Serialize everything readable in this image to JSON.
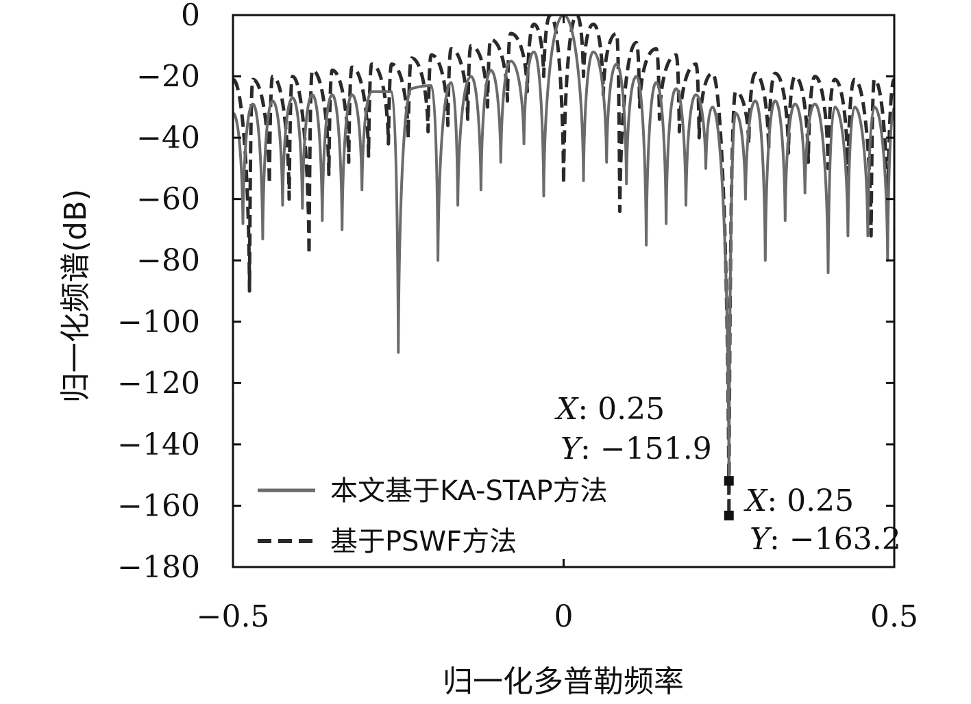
{
  "chart_data": {
    "type": "line",
    "xlabel": "归一化多普勒频率",
    "ylabel": "归一化频谱(dB)",
    "xlim": [
      -0.5,
      0.5
    ],
    "ylim": [
      -180,
      0
    ],
    "xticks": [
      -0.5,
      0,
      0.5
    ],
    "xtick_labels": [
      "−0.5",
      "0",
      "0.5"
    ],
    "yticks": [
      0,
      -20,
      -40,
      -60,
      -80,
      -100,
      -120,
      -140,
      -160,
      -180
    ],
    "ytick_labels": [
      "0",
      "−20",
      "−40",
      "−60",
      "−80",
      "−100",
      "−120",
      "−140",
      "−160",
      "−180"
    ],
    "grid": false,
    "legend_position": "bottom-left",
    "series": [
      {
        "name": "本文基于KA-STAP方法",
        "color": "#6b6b6b",
        "dash": "solid",
        "peaks": [
          [
            -0.5,
            -32
          ],
          [
            -0.47,
            -29
          ],
          [
            -0.44,
            -28
          ],
          [
            -0.41,
            -27
          ],
          [
            -0.38,
            -26
          ],
          [
            -0.35,
            -26
          ],
          [
            -0.32,
            -26
          ],
          [
            -0.29,
            -25
          ],
          [
            -0.26,
            -25
          ],
          [
            -0.23,
            -24
          ],
          [
            -0.2,
            -23
          ],
          [
            -0.17,
            -22
          ],
          [
            -0.14,
            -20
          ],
          [
            -0.11,
            -18
          ],
          [
            -0.08,
            -15
          ],
          [
            -0.045,
            -12
          ],
          [
            0,
            0
          ],
          [
            0.045,
            -12
          ],
          [
            0.08,
            -16
          ],
          [
            0.11,
            -20
          ],
          [
            0.14,
            -22
          ],
          [
            0.17,
            -24
          ],
          [
            0.2,
            -26
          ],
          [
            0.225,
            -30
          ],
          [
            0.26,
            -32
          ],
          [
            0.29,
            -28
          ],
          [
            0.32,
            -28
          ],
          [
            0.35,
            -29
          ],
          [
            0.38,
            -29
          ],
          [
            0.41,
            -30
          ],
          [
            0.44,
            -30
          ],
          [
            0.47,
            -30
          ],
          [
            0.5,
            -30
          ]
        ],
        "nulls": [
          [
            -0.485,
            -68
          ],
          [
            -0.455,
            -73
          ],
          [
            -0.425,
            -62
          ],
          [
            -0.395,
            -63
          ],
          [
            -0.365,
            -67
          ],
          [
            -0.335,
            -70
          ],
          [
            -0.305,
            -57
          ],
          [
            -0.25,
            -110
          ],
          [
            -0.19,
            -80
          ],
          [
            -0.16,
            -62
          ],
          [
            -0.125,
            -57
          ],
          [
            -0.095,
            -48
          ],
          [
            -0.06,
            -42
          ],
          [
            -0.03,
            -59
          ],
          [
            0.03,
            -54
          ],
          [
            0.065,
            -48
          ],
          [
            0.095,
            -55
          ],
          [
            0.125,
            -75
          ],
          [
            0.155,
            -68
          ],
          [
            0.185,
            -62
          ],
          [
            0.215,
            -50
          ],
          [
            0.25,
            -151.9
          ],
          [
            0.275,
            -60
          ],
          [
            0.305,
            -80
          ],
          [
            0.335,
            -67
          ],
          [
            0.365,
            -58
          ],
          [
            0.4,
            -84
          ],
          [
            0.43,
            -72
          ],
          [
            0.46,
            -72
          ],
          [
            0.49,
            -80
          ]
        ]
      },
      {
        "name": "基于PSWF方法",
        "color": "#2a2a2a",
        "dash": "dashed",
        "peaks": [
          [
            -0.5,
            -21
          ],
          [
            -0.47,
            -21
          ],
          [
            -0.44,
            -20
          ],
          [
            -0.41,
            -20
          ],
          [
            -0.38,
            -18
          ],
          [
            -0.35,
            -18
          ],
          [
            -0.32,
            -17
          ],
          [
            -0.29,
            -16
          ],
          [
            -0.26,
            -16
          ],
          [
            -0.23,
            -14
          ],
          [
            -0.2,
            -13
          ],
          [
            -0.17,
            -11
          ],
          [
            -0.14,
            -10
          ],
          [
            -0.11,
            -8
          ],
          [
            -0.08,
            -6
          ],
          [
            -0.045,
            -3
          ],
          [
            -0.02,
            0
          ],
          [
            0.02,
            0
          ],
          [
            0.045,
            -3
          ],
          [
            0.08,
            -6
          ],
          [
            0.11,
            -9
          ],
          [
            0.14,
            -11
          ],
          [
            0.17,
            -13
          ],
          [
            0.2,
            -16
          ],
          [
            0.225,
            -19
          ],
          [
            0.26,
            -25
          ],
          [
            0.29,
            -19
          ],
          [
            0.32,
            -19
          ],
          [
            0.35,
            -20
          ],
          [
            0.38,
            -20
          ],
          [
            0.41,
            -21
          ],
          [
            0.44,
            -21
          ],
          [
            0.47,
            -21
          ],
          [
            0.5,
            -21
          ]
        ],
        "nulls": [
          [
            -0.475,
            -90
          ],
          [
            -0.445,
            -55
          ],
          [
            -0.415,
            -60
          ],
          [
            -0.385,
            -78
          ],
          [
            -0.355,
            -52
          ],
          [
            -0.325,
            -48
          ],
          [
            -0.295,
            -46
          ],
          [
            -0.265,
            -42
          ],
          [
            -0.235,
            -40
          ],
          [
            -0.205,
            -38
          ],
          [
            -0.175,
            -36
          ],
          [
            -0.145,
            -34
          ],
          [
            -0.115,
            -30
          ],
          [
            -0.085,
            -28
          ],
          [
            -0.055,
            -25
          ],
          [
            -0.03,
            -20
          ],
          [
            0,
            -55
          ],
          [
            0.03,
            -20
          ],
          [
            0.06,
            -26
          ],
          [
            0.085,
            -64
          ],
          [
            0.115,
            -30
          ],
          [
            0.145,
            -34
          ],
          [
            0.175,
            -38
          ],
          [
            0.205,
            -40
          ],
          [
            0.25,
            -163.2
          ],
          [
            0.28,
            -42
          ],
          [
            0.31,
            -44
          ],
          [
            0.34,
            -45
          ],
          [
            0.37,
            -48
          ],
          [
            0.4,
            -50
          ],
          [
            0.43,
            -52
          ],
          [
            0.465,
            -72
          ],
          [
            0.49,
            -68
          ]
        ]
      }
    ],
    "datatips": [
      {
        "x_label": "X",
        "x_value": "0.25",
        "y_label": "Y",
        "y_value": "−151.9",
        "x": 0.25,
        "y": -151.9
      },
      {
        "x_label": "X",
        "x_value": "0.25",
        "y_label": "Y",
        "y_value": "−163.2",
        "x": 0.25,
        "y": -163.2
      }
    ]
  }
}
